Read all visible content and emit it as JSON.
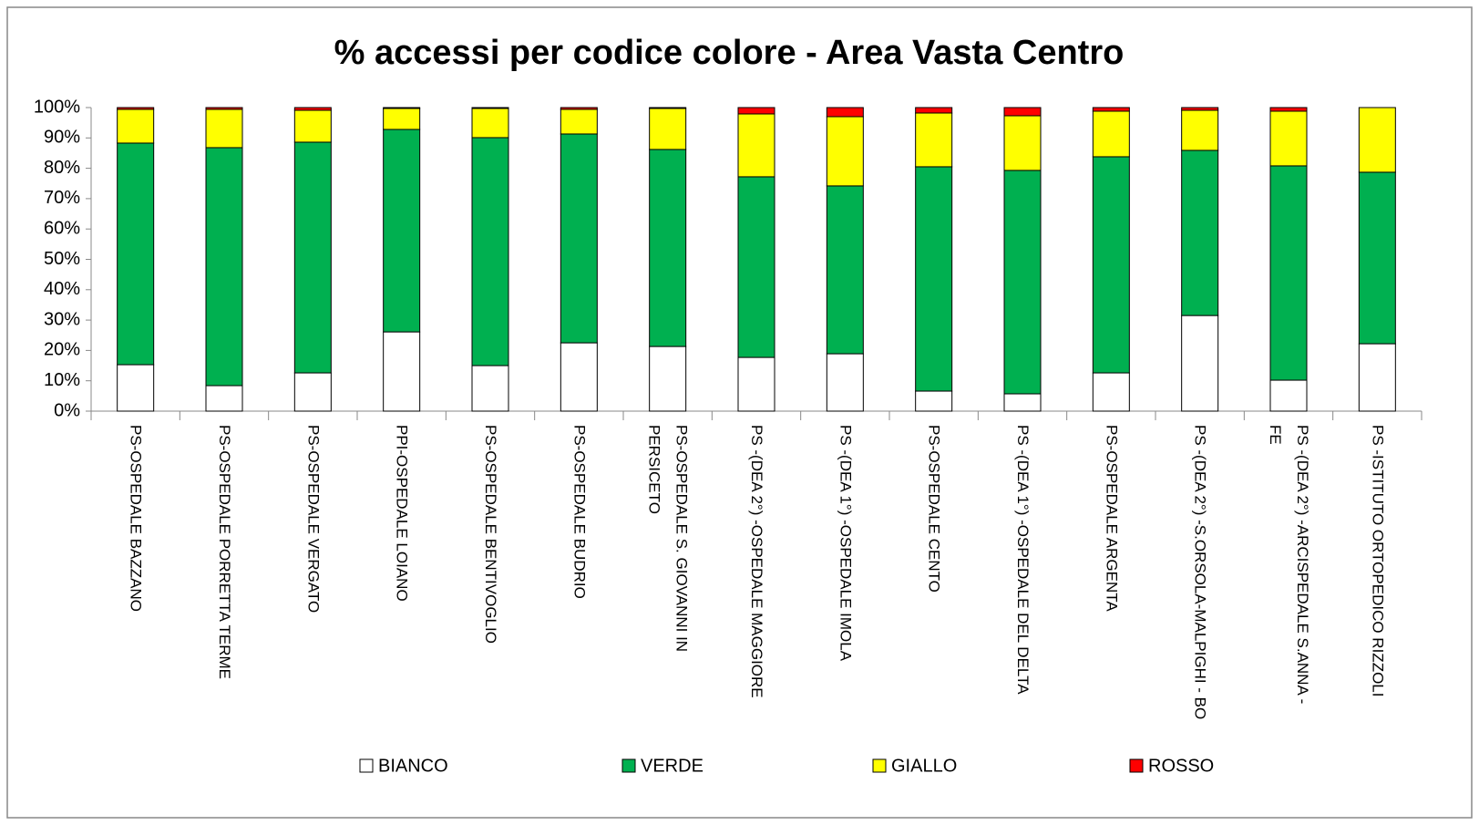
{
  "chart_data": {
    "type": "stacked_bar",
    "title": "% accessi per codice colore - Area Vasta Centro",
    "categories": [
      "PS-OSPEDALE BAZZANO",
      "PS-OSPEDALE PORRETTA TERME",
      "PS-OSPEDALE VERGATO",
      "PPI-OSPEDALE LOIANO",
      "PS-OSPEDALE BENTIVOGLIO",
      "PS-OSPEDALE BUDRIO",
      "PS-OSPEDALE S. GIOVANNI IN PERSICETO",
      "PS -(DEA 2°) -OSPEDALE MAGGIORE",
      "PS -(DEA 1°) -OSPEDALE IMOLA",
      "PS-OSPEDALE CENTO",
      "PS -(DEA 1°) -OSPEDALE DEL DELTA",
      "PS-OSPEDALE ARGENTA",
      "PS -(DEA 2°) -S.ORSOLA-MALPIGHI - BO",
      "PS -(DEA 2°) -ARCISPEDALE S.ANNA - FE",
      "PS -ISTITUTO ORTOPEDICO RIZZOLI"
    ],
    "series": [
      {
        "name": "BIANCO",
        "color": "#ffffff",
        "values": [
          15.3,
          8.4,
          12.6,
          26.1,
          15.0,
          22.5,
          21.3,
          17.7,
          18.9,
          6.6,
          5.7,
          12.6,
          31.5,
          10.2,
          22.2
        ]
      },
      {
        "name": "VERDE",
        "color": "#00b050",
        "values": [
          73.0,
          78.4,
          76.0,
          66.7,
          75.1,
          68.8,
          64.9,
          59.5,
          55.3,
          73.9,
          73.6,
          71.2,
          54.4,
          70.6,
          56.5
        ]
      },
      {
        "name": "GIALLO",
        "color": "#ffff00",
        "values": [
          11.1,
          12.6,
          10.5,
          6.9,
          9.6,
          8.1,
          13.5,
          20.7,
          22.8,
          17.7,
          18.0,
          15.0,
          13.2,
          18.0,
          21.3
        ]
      },
      {
        "name": "ROSSO",
        "color": "#ff0000",
        "values": [
          0.6,
          0.6,
          0.9,
          0.3,
          0.3,
          0.6,
          0.3,
          2.1,
          3.0,
          1.8,
          2.7,
          1.2,
          0.9,
          1.2,
          0
        ]
      }
    ],
    "ylim": [
      0,
      100
    ],
    "yticks": [
      {
        "value": 0,
        "label": "0%"
      },
      {
        "value": 10,
        "label": "10%"
      },
      {
        "value": 20,
        "label": "20%"
      },
      {
        "value": 30,
        "label": "30%"
      },
      {
        "value": 40,
        "label": "40%"
      },
      {
        "value": 50,
        "label": "50%"
      },
      {
        "value": 60,
        "label": "60%"
      },
      {
        "value": 70,
        "label": "70%"
      },
      {
        "value": 80,
        "label": "80%"
      },
      {
        "value": 90,
        "label": "90%"
      },
      {
        "value": 100,
        "label": "100%"
      }
    ],
    "grid": false,
    "legend": "bottom"
  }
}
